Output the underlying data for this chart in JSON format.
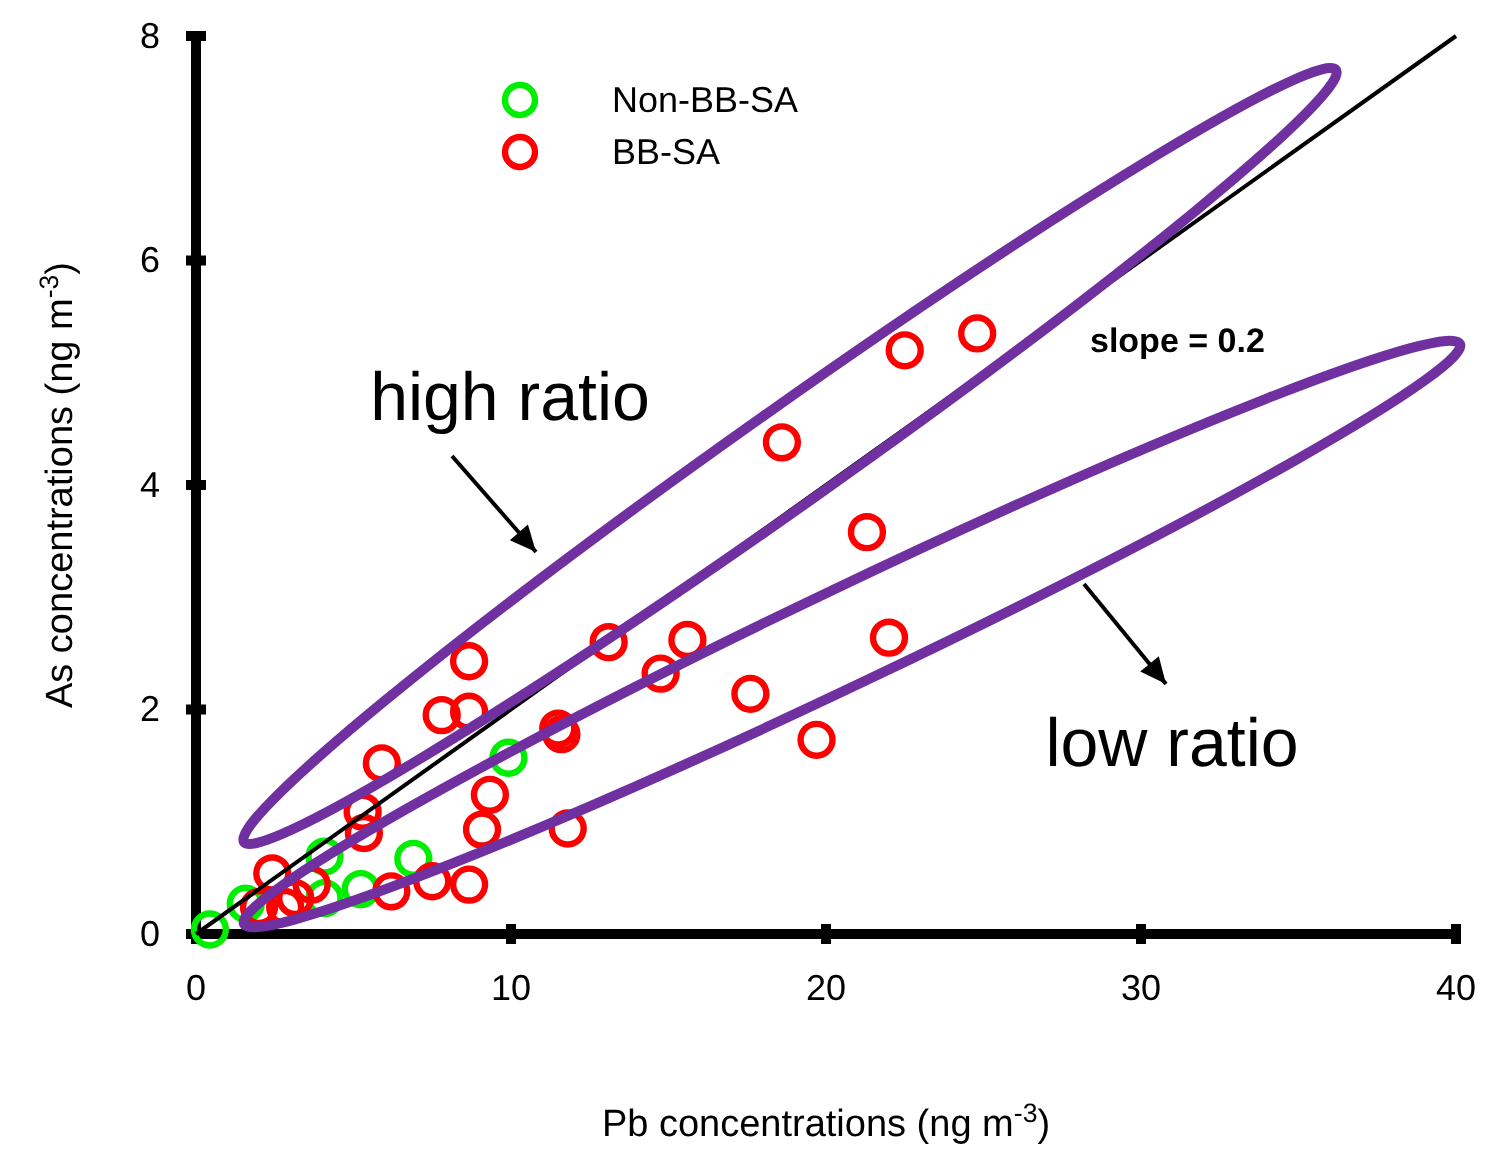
{
  "chart_data": {
    "type": "scatter",
    "xlabel": "Pb concentrations (ng m$^{-3}$)",
    "ylabel": "As concentrations (ng m$^{-3}$)",
    "xlim": [
      0,
      40
    ],
    "ylim": [
      0,
      8
    ],
    "xticks": [
      0,
      10,
      20,
      30,
      40
    ],
    "yticks": [
      0,
      2,
      4,
      6,
      8
    ],
    "grid": false,
    "legend": "top left",
    "annotations": [
      {
        "text": "high ratio"
      },
      {
        "text": "low ratio"
      },
      "slope = 0.2"
    ],
    "series": [
      {
        "name": "Non-BB-SA",
        "marker": "circle",
        "color": "#00ee00",
        "x": [
          0.44,
          1.58,
          4.08,
          4.08,
          5.23,
          6.9,
          9.92
        ],
        "values": [
          0.04,
          0.27,
          0.32,
          0.69,
          0.4,
          0.67,
          1.57
        ]
      },
      {
        "name": "BB-SA",
        "marker": "circle",
        "color": "#ff0000",
        "x": [
          2.0,
          2.42,
          2.83,
          3.15,
          3.67,
          5.29,
          5.33,
          5.9,
          6.2,
          7.5,
          7.8,
          8.67,
          8.67,
          8.67,
          9.08,
          9.33,
          11.5,
          11.6,
          11.8,
          13.1,
          14.75,
          15.6,
          17.6,
          18.6,
          19.7,
          21.3,
          22.0,
          22.5,
          24.8
        ],
        "values": [
          0.24,
          0.54,
          0.24,
          0.32,
          0.44,
          1.09,
          0.9,
          1.52,
          0.38,
          0.47,
          1.95,
          2.43,
          1.98,
          0.44,
          0.93,
          1.24,
          1.83,
          1.78,
          0.94,
          2.6,
          2.32,
          2.62,
          2.14,
          4.38,
          1.73,
          3.58,
          2.64,
          5.2,
          5.35
        ]
      },
      {
        "type": "line",
        "color": "#000000",
        "x": [
          0,
          40
        ],
        "values": [
          0,
          8
        ]
      }
    ]
  }
}
